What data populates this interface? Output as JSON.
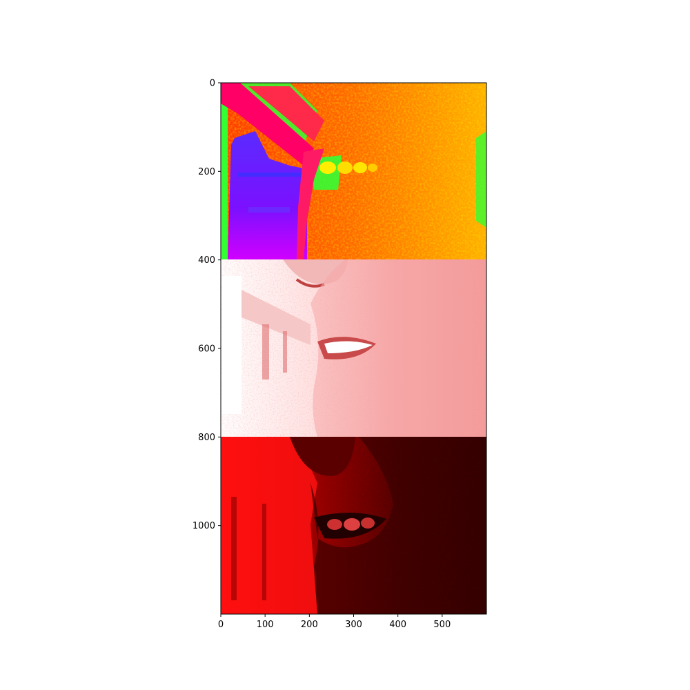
{
  "axes": {
    "x_ticks": [
      0,
      100,
      200,
      300,
      400,
      500
    ],
    "y_ticks": [
      0,
      200,
      400,
      600,
      800,
      1000
    ],
    "x_range": [
      0,
      600
    ],
    "y_range": [
      0,
      1200
    ]
  },
  "panels": [
    {
      "name": "false-color-panel",
      "rows": [
        0,
        400
      ],
      "colormap": "hsv",
      "palette": [
        "#ff0066",
        "#33ff33",
        "#6600ff",
        "#ff3300",
        "#ffaa00",
        "#ffe000"
      ]
    },
    {
      "name": "pink-panel",
      "rows": [
        400,
        800
      ],
      "colormap": "white-to-red",
      "palette": [
        "#ffffff",
        "#ffd6d6",
        "#ff9a9a",
        "#f07070"
      ]
    },
    {
      "name": "red-panel",
      "rows": [
        800,
        1200
      ],
      "colormap": "black-to-red",
      "palette": [
        "#ff0000",
        "#b00000",
        "#600000",
        "#2a0000"
      ]
    }
  ]
}
